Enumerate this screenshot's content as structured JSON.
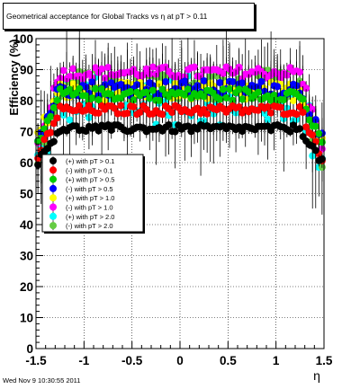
{
  "chart_data": {
    "type": "scatter",
    "title": "Geometrical acceptance for Global Tracks vs   η at pT > 0.11",
    "xlabel": "η",
    "ylabel": "Efficiency (%)",
    "xlim": [
      -1.5,
      1.5
    ],
    "ylim": [
      0,
      100
    ],
    "x_ticks": [
      "-1.5",
      "-1",
      "-0.5",
      "0",
      "0.5",
      "1",
      "1.5"
    ],
    "y_ticks": [
      "0",
      "10",
      "20",
      "30",
      "40",
      "50",
      "60",
      "70",
      "80",
      "90",
      "100"
    ],
    "grid": true,
    "legend_position": "left-center",
    "series": [
      {
        "name": "(+) with pT > 0.1",
        "color": "#000000",
        "plateau": 71,
        "edge": 60,
        "spread": 1.2
      },
      {
        "name": "(-) with pT > 0.1",
        "color": "#ff0000",
        "plateau": 77,
        "edge": 62,
        "spread": 1.5
      },
      {
        "name": "(+) with pT > 0.5",
        "color": "#00cc00",
        "plateau": 82,
        "edge": 65,
        "spread": 2.0
      },
      {
        "name": "(-) with pT > 0.5",
        "color": "#0000ff",
        "plateau": 84,
        "edge": 67,
        "spread": 2.5
      },
      {
        "name": "(+) with pT > 1.0",
        "color": "#ffff00",
        "plateau": 83,
        "edge": 68,
        "spread": 3.0
      },
      {
        "name": "(-) with pT > 1.0",
        "color": "#ff00ff",
        "plateau": 89,
        "edge": 66,
        "spread": 2.0
      },
      {
        "name": "(+) with pT > 2.0",
        "color": "#00ffff",
        "plateau": 80,
        "edge": 60,
        "spread": 8.0
      },
      {
        "name": "(-) with pT > 2.0",
        "color": "#66cc44",
        "plateau": 85,
        "edge": 62,
        "spread": 5.0
      }
    ],
    "eta_range": [
      -1.48,
      1.48
    ],
    "n_points": 90
  },
  "footer": {
    "timestamp": "Wed Nov  9 10:30:55 2011"
  }
}
